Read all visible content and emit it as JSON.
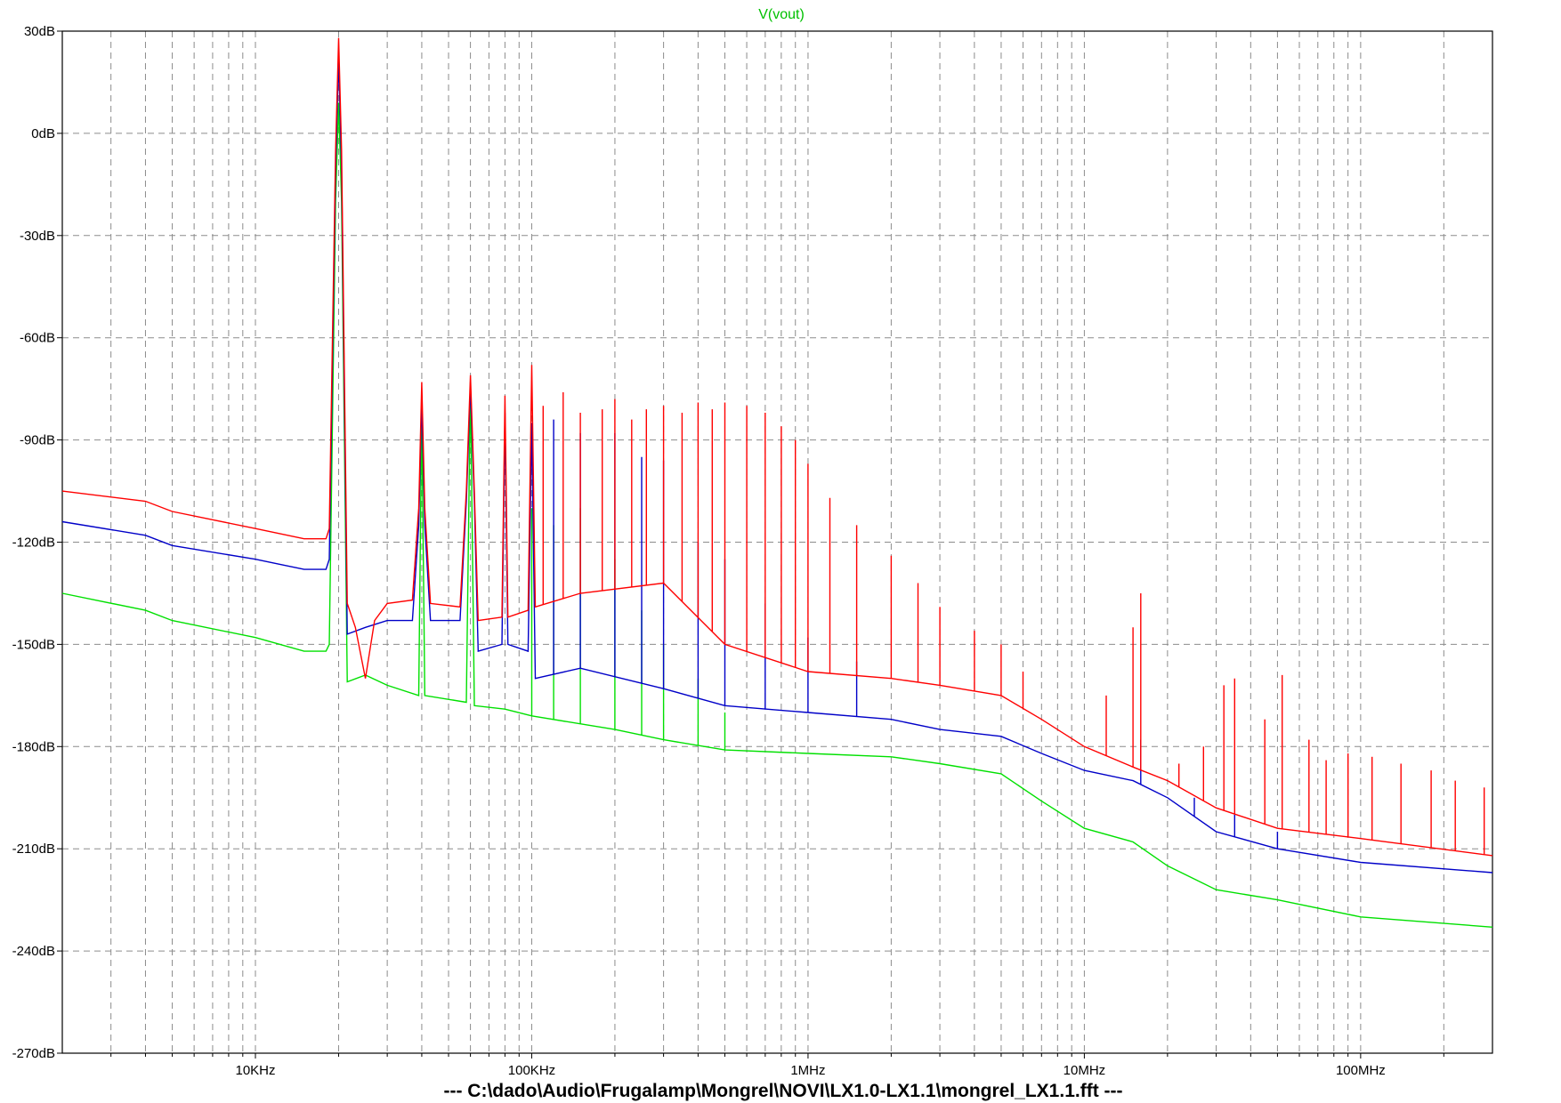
{
  "chart_data": {
    "type": "line",
    "title": "V(vout)",
    "title_color": "#00c000",
    "footer": "---  C:\\dado\\Audio\\Frugalamp\\Mongrel\\NOVI\\LX1.0-LX1.1\\mongrel_LX1.1.fft  ---",
    "x_scale": "log",
    "xlim": [
      2000,
      300000000
    ],
    "ylim": [
      -270,
      30
    ],
    "grid": true,
    "x_tick_labels": [
      {
        "value": 10000,
        "label": "10KHz"
      },
      {
        "value": 100000,
        "label": "100KHz"
      },
      {
        "value": 1000000,
        "label": "1MHz"
      },
      {
        "value": 10000000,
        "label": "10MHz"
      },
      {
        "value": 100000000,
        "label": "100MHz"
      }
    ],
    "y_tick_labels": [
      {
        "value": 30,
        "label": "30dB"
      },
      {
        "value": 0,
        "label": "0dB"
      },
      {
        "value": -30,
        "label": "-30dB"
      },
      {
        "value": -60,
        "label": "-60dB"
      },
      {
        "value": -90,
        "label": "-90dB"
      },
      {
        "value": -120,
        "label": "-120dB"
      },
      {
        "value": -150,
        "label": "-150dB"
      },
      {
        "value": -180,
        "label": "-180dB"
      },
      {
        "value": -210,
        "label": "-210dB"
      },
      {
        "value": -240,
        "label": "-240dB"
      },
      {
        "value": -270,
        "label": "-270dB"
      }
    ],
    "series": [
      {
        "color": "#ff0000",
        "points": [
          [
            2000,
            -105
          ],
          [
            4000,
            -108
          ],
          [
            5000,
            -111
          ],
          [
            10000,
            -116
          ],
          [
            15000,
            -119
          ],
          [
            18000,
            -119
          ],
          [
            18500,
            -116
          ],
          [
            19500,
            -5
          ],
          [
            20000,
            28
          ],
          [
            20500,
            -5
          ],
          [
            21500,
            -138
          ],
          [
            23000,
            -145
          ],
          [
            25000,
            -160
          ],
          [
            27000,
            -143
          ],
          [
            30000,
            -138
          ],
          [
            37000,
            -137
          ],
          [
            39000,
            -110
          ],
          [
            40000,
            -73
          ],
          [
            41000,
            -110
          ],
          [
            43000,
            -138
          ],
          [
            55000,
            -139
          ],
          [
            58000,
            -105
          ],
          [
            60000,
            -71
          ],
          [
            62000,
            -105
          ],
          [
            64000,
            -143
          ],
          [
            78000,
            -142
          ],
          [
            80000,
            -77
          ],
          [
            82000,
            -142
          ],
          [
            97000,
            -140
          ],
          [
            100000,
            -68
          ],
          [
            103000,
            -139
          ],
          [
            150000,
            -135
          ],
          [
            300000,
            -132
          ],
          [
            500000,
            -150
          ],
          [
            1000000,
            -158
          ],
          [
            2000000,
            -160
          ],
          [
            3000000,
            -162
          ],
          [
            5000000,
            -165
          ],
          [
            7000000,
            -172
          ],
          [
            10000000,
            -180
          ],
          [
            15000000,
            -186
          ],
          [
            20000000,
            -190
          ],
          [
            30000000,
            -198
          ],
          [
            50000000,
            -204
          ],
          [
            100000000,
            -207
          ],
          [
            300000000,
            -212
          ]
        ],
        "peaks": [
          [
            110000,
            -80
          ],
          [
            130000,
            -76
          ],
          [
            150000,
            -82
          ],
          [
            180000,
            -81
          ],
          [
            200000,
            -78
          ],
          [
            230000,
            -84
          ],
          [
            260000,
            -81
          ],
          [
            300000,
            -80
          ],
          [
            350000,
            -82
          ],
          [
            400000,
            -79
          ],
          [
            450000,
            -81
          ],
          [
            500000,
            -79
          ],
          [
            600000,
            -80
          ],
          [
            700000,
            -82
          ],
          [
            800000,
            -86
          ],
          [
            900000,
            -90
          ],
          [
            1000000,
            -97
          ],
          [
            1200000,
            -107
          ],
          [
            1500000,
            -115
          ],
          [
            2000000,
            -124
          ],
          [
            2500000,
            -132
          ],
          [
            3000000,
            -139
          ],
          [
            4000000,
            -146
          ],
          [
            5000000,
            -150
          ],
          [
            6000000,
            -158
          ],
          [
            12000000,
            -165
          ],
          [
            15000000,
            -145
          ],
          [
            16000000,
            -135
          ],
          [
            22000000,
            -185
          ],
          [
            27000000,
            -180
          ],
          [
            32000000,
            -162
          ],
          [
            35000000,
            -160
          ],
          [
            45000000,
            -172
          ],
          [
            52000000,
            -159
          ],
          [
            65000000,
            -178
          ],
          [
            75000000,
            -184
          ],
          [
            90000000,
            -182
          ],
          [
            110000000,
            -183
          ],
          [
            140000000,
            -185
          ],
          [
            180000000,
            -187
          ],
          [
            220000000,
            -190
          ],
          [
            280000000,
            -192
          ]
        ]
      },
      {
        "color": "#0000c8",
        "points": [
          [
            2000,
            -114
          ],
          [
            4000,
            -118
          ],
          [
            5000,
            -121
          ],
          [
            10000,
            -125
          ],
          [
            15000,
            -128
          ],
          [
            18000,
            -128
          ],
          [
            18500,
            -125
          ],
          [
            19500,
            -10
          ],
          [
            20000,
            22
          ],
          [
            20500,
            -10
          ],
          [
            21500,
            -147
          ],
          [
            25000,
            -145
          ],
          [
            30000,
            -143
          ],
          [
            37000,
            -143
          ],
          [
            39000,
            -115
          ],
          [
            40000,
            -78
          ],
          [
            41000,
            -115
          ],
          [
            43000,
            -143
          ],
          [
            55000,
            -143
          ],
          [
            58000,
            -108
          ],
          [
            60000,
            -74
          ],
          [
            62000,
            -108
          ],
          [
            64000,
            -152
          ],
          [
            78000,
            -150
          ],
          [
            80000,
            -82
          ],
          [
            82000,
            -150
          ],
          [
            97000,
            -152
          ],
          [
            100000,
            -85
          ],
          [
            103000,
            -160
          ],
          [
            150000,
            -157
          ],
          [
            300000,
            -163
          ],
          [
            500000,
            -168
          ],
          [
            1000000,
            -170
          ],
          [
            2000000,
            -172
          ],
          [
            3000000,
            -175
          ],
          [
            5000000,
            -177
          ],
          [
            7000000,
            -182
          ],
          [
            10000000,
            -187
          ],
          [
            15000000,
            -190
          ],
          [
            20000000,
            -195
          ],
          [
            30000000,
            -205
          ],
          [
            50000000,
            -210
          ],
          [
            100000000,
            -214
          ],
          [
            300000000,
            -217
          ]
        ],
        "peaks": [
          [
            120000,
            -84
          ],
          [
            150000,
            -88
          ],
          [
            200000,
            -88
          ],
          [
            250000,
            -95
          ],
          [
            300000,
            -96
          ],
          [
            400000,
            -120
          ],
          [
            500000,
            -125
          ],
          [
            700000,
            -138
          ],
          [
            1000000,
            -148
          ],
          [
            1500000,
            -155
          ],
          [
            16000000,
            -178
          ],
          [
            25000000,
            -195
          ],
          [
            35000000,
            -200
          ],
          [
            50000000,
            -205
          ]
        ]
      },
      {
        "color": "#00e000",
        "points": [
          [
            2000,
            -135
          ],
          [
            4000,
            -140
          ],
          [
            5000,
            -143
          ],
          [
            10000,
            -148
          ],
          [
            15000,
            -152
          ],
          [
            18000,
            -152
          ],
          [
            18500,
            -150
          ],
          [
            19500,
            -20
          ],
          [
            20000,
            9
          ],
          [
            20500,
            -20
          ],
          [
            21500,
            -161
          ],
          [
            25000,
            -159
          ],
          [
            30000,
            -162
          ],
          [
            39000,
            -165
          ],
          [
            40000,
            -80
          ],
          [
            41000,
            -165
          ],
          [
            58000,
            -167
          ],
          [
            60000,
            -73
          ],
          [
            62000,
            -168
          ],
          [
            80000,
            -169
          ],
          [
            100000,
            -171
          ],
          [
            200000,
            -175
          ],
          [
            300000,
            -178
          ],
          [
            500000,
            -181
          ],
          [
            1000000,
            -182
          ],
          [
            2000000,
            -183
          ],
          [
            3000000,
            -185
          ],
          [
            5000000,
            -188
          ],
          [
            7000000,
            -196
          ],
          [
            10000000,
            -204
          ],
          [
            15000000,
            -208
          ],
          [
            20000000,
            -215
          ],
          [
            30000000,
            -222
          ],
          [
            50000000,
            -225
          ],
          [
            100000000,
            -230
          ],
          [
            300000000,
            -233
          ]
        ],
        "peaks": [
          [
            100000,
            -110
          ],
          [
            120000,
            -115
          ],
          [
            150000,
            -110
          ],
          [
            200000,
            -125
          ],
          [
            250000,
            -140
          ],
          [
            300000,
            -150
          ],
          [
            400000,
            -160
          ],
          [
            500000,
            -170
          ]
        ]
      }
    ]
  }
}
